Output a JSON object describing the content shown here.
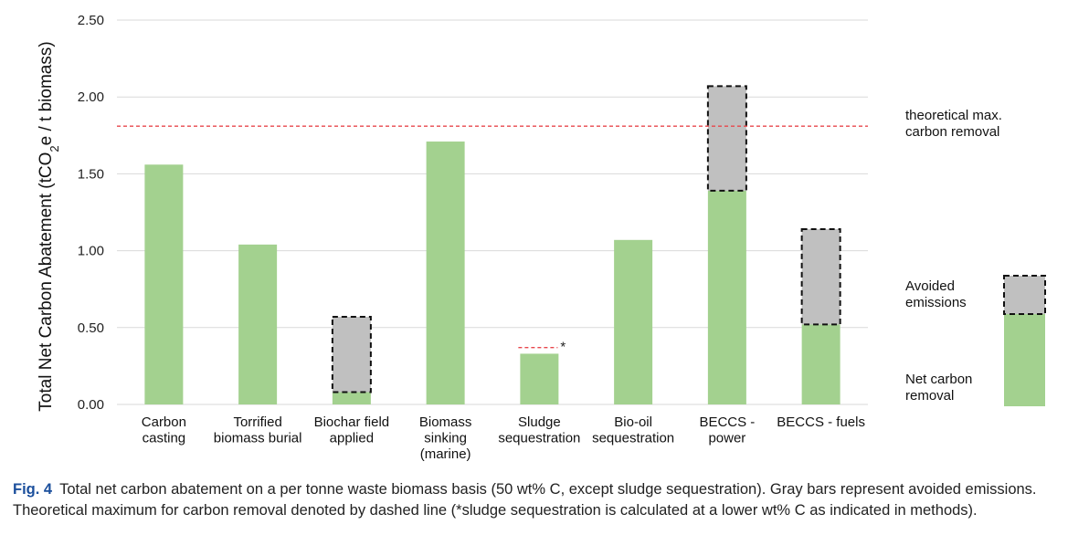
{
  "chart_data": {
    "type": "bar",
    "stacked": true,
    "ylabel": "Total Net Carbon Abatement (tCO2e / t biomass)",
    "ylim": [
      0,
      2.5
    ],
    "yticks": [
      "0.00",
      "0.50",
      "1.00",
      "1.50",
      "2.00",
      "2.50"
    ],
    "grid": true,
    "categories": [
      [
        "Carbon",
        "casting"
      ],
      [
        "Torrified",
        "biomass burial"
      ],
      [
        "Biochar field",
        "applied"
      ],
      [
        "Biomass",
        "sinking",
        "(marine)"
      ],
      [
        "Sludge",
        "sequestration"
      ],
      [
        "Bio-oil",
        "sequestration"
      ],
      [
        "BECCS -",
        "power"
      ],
      [
        "BECCS - fuels"
      ]
    ],
    "series": [
      {
        "name": "Net carbon removal",
        "color": "#a3d18f",
        "values": [
          1.56,
          1.04,
          0.08,
          1.71,
          0.33,
          1.07,
          1.39,
          0.52
        ]
      },
      {
        "name": "Avoided emissions",
        "color": "#c0c0c0",
        "dashed_border": true,
        "values": [
          0,
          0,
          0.49,
          0,
          0,
          0,
          0.68,
          0.62
        ]
      }
    ],
    "reference_line": {
      "value": 1.81,
      "color": "#e8474c",
      "style": "dashed",
      "label_lines": [
        "theoretical max.",
        "carbon removal"
      ]
    },
    "sludge_line": {
      "value": 0.37,
      "color": "#e8474c",
      "style": "dashed",
      "marker": "*"
    },
    "legend": {
      "placement": "right",
      "avoided_lines": [
        "Avoided",
        "emissions"
      ],
      "net_lines": [
        "Net carbon",
        "removal"
      ]
    }
  },
  "caption": {
    "fig_label": "Fig. 4",
    "text": "Total net carbon abatement on a per tonne waste biomass basis (50 wt% C, except sludge sequestration). Gray bars represent avoided emissions. Theoretical maximum for carbon removal denoted by dashed line (*sludge sequestration is calculated at a lower wt% C as indicated in methods)."
  }
}
